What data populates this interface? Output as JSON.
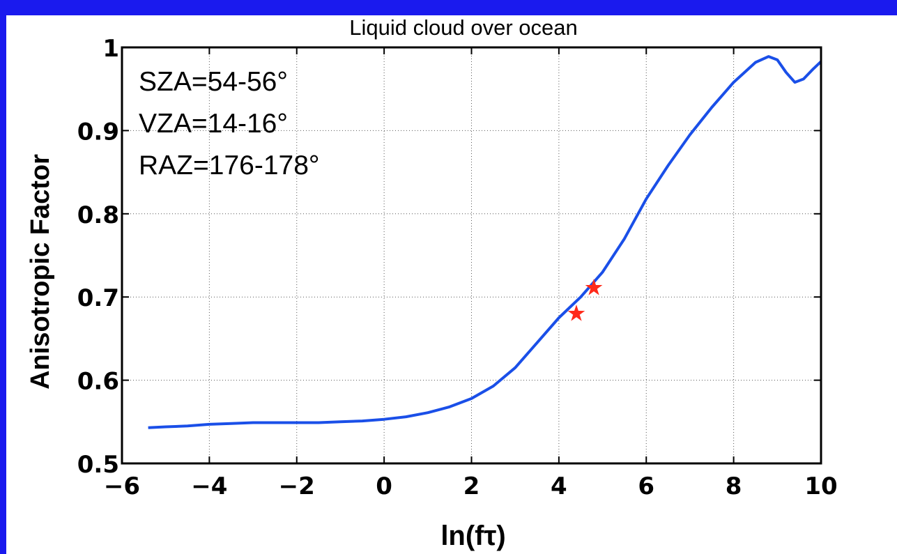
{
  "chart_data": {
    "type": "line",
    "title": "Liquid cloud over ocean",
    "xlabel": "ln(fτ)",
    "ylabel": "Anisotropic Factor",
    "xlim": [
      -6,
      10
    ],
    "ylim": [
      0.5,
      1
    ],
    "xticks": [
      -6,
      -4,
      -2,
      0,
      2,
      4,
      6,
      8,
      10
    ],
    "yticks": [
      0.5,
      0.6,
      0.7,
      0.8,
      0.9,
      1
    ],
    "xtick_labels": [
      "−6",
      "−4",
      "−2",
      "0",
      "2",
      "4",
      "6",
      "8",
      "10"
    ],
    "ytick_labels": [
      "0.5",
      "0.6",
      "0.7",
      "0.8",
      "0.9",
      "1"
    ],
    "grid": true,
    "annotations": [
      "SZA=54-56°",
      "VZA=14-16°",
      "RAZ=176-178°"
    ],
    "series": [
      {
        "color": "#1a4fe8",
        "x": [
          -5.4,
          -5.0,
          -4.5,
          -4.0,
          -3.5,
          -3.0,
          -2.5,
          -2.0,
          -1.5,
          -1.0,
          -0.5,
          0.0,
          0.5,
          1.0,
          1.5,
          2.0,
          2.5,
          3.0,
          3.5,
          4.0,
          4.5,
          5.0,
          5.5,
          6.0,
          6.5,
          7.0,
          7.5,
          8.0,
          8.5,
          8.8,
          9.0,
          9.2,
          9.4,
          9.6,
          9.8,
          10.0
        ],
        "y": [
          0.543,
          0.544,
          0.545,
          0.547,
          0.548,
          0.549,
          0.549,
          0.549,
          0.549,
          0.55,
          0.551,
          0.553,
          0.556,
          0.561,
          0.568,
          0.578,
          0.593,
          0.615,
          0.645,
          0.675,
          0.7,
          0.73,
          0.77,
          0.818,
          0.858,
          0.895,
          0.928,
          0.958,
          0.982,
          0.989,
          0.985,
          0.97,
          0.958,
          0.962,
          0.973,
          0.983
        ]
      }
    ],
    "markers": [
      {
        "x": 4.4,
        "y": 0.68,
        "color": "#ff2a1a",
        "shape": "star"
      },
      {
        "x": 4.8,
        "y": 0.711,
        "color": "#ff2a1a",
        "shape": "star"
      }
    ]
  }
}
